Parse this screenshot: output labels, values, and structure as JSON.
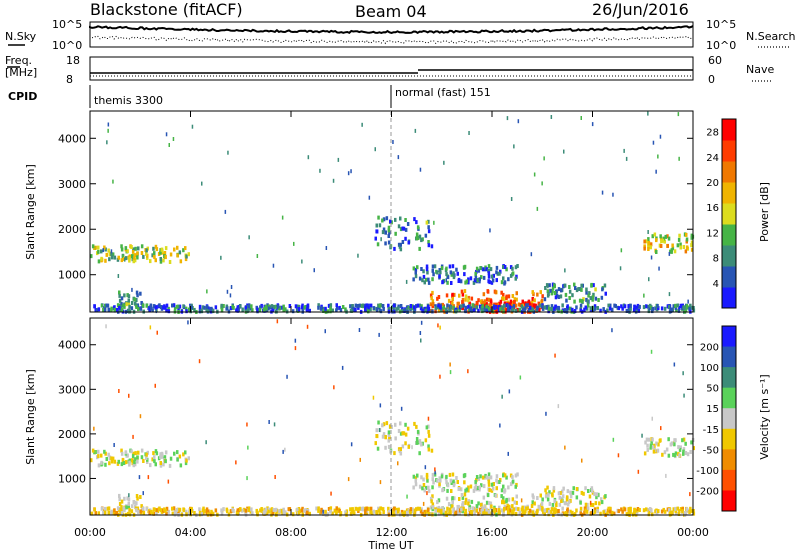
{
  "header": {
    "station": "Blackstone (fitACF)",
    "beam": "Beam 04",
    "date": "26/Jun/2016"
  },
  "top_panels": {
    "nsky_label": "N.Sky",
    "nsky_ticks": [
      "10^5",
      "10^0"
    ],
    "nsearch_label": "N.Search",
    "nsearch_ticks": [
      "10^5",
      "10^0"
    ],
    "freq_label_1": "Freq.",
    "freq_label_2": "[MHz]",
    "freq_ticks": [
      "18",
      "8"
    ],
    "nave_label": "Nave",
    "nave_ticks": [
      "60",
      "0"
    ],
    "cpid_label": "CPID",
    "cpid_segments": [
      {
        "name": "themis 3300",
        "start_hour": 0
      },
      {
        "name": "normal (fast) 151",
        "start_hour": 12
      }
    ]
  },
  "chart_data": [
    {
      "type": "heatmap",
      "panel": "power",
      "ylabel": "Slant Range [km]",
      "colorbar_label": "Power [dB]",
      "xlim": [
        0,
        24
      ],
      "ylim": [
        180,
        4600
      ],
      "yticks": [
        1000,
        2000,
        3000,
        4000
      ],
      "colorbar_ticks": [
        4,
        8,
        12,
        16,
        20,
        24,
        28
      ],
      "colorbar_range": [
        0,
        30
      ],
      "colorbar_colors": [
        "#1a1aff",
        "#2855b4",
        "#3c8c78",
        "#46b446",
        "#dcdc1e",
        "#f0b400",
        "#f07800",
        "#ff3c00",
        "#ff0000"
      ],
      "echo_regions": [
        {
          "x_range": [
            0.0,
            3.9
          ],
          "y_center": 1450,
          "y_width": 220,
          "value": 14
        },
        {
          "x_range": [
            1.1,
            2.1
          ],
          "y_center": 450,
          "y_width": 200,
          "value": 10
        },
        {
          "x_range": [
            11.3,
            13.6
          ],
          "y_center": 1900,
          "y_width": 450,
          "value": 8
        },
        {
          "x_range": [
            12.8,
            17.0
          ],
          "y_center": 1000,
          "y_width": 250,
          "value": 6
        },
        {
          "x_range": [
            13.5,
            18.0
          ],
          "y_center": 400,
          "y_width": 300,
          "value": 22
        },
        {
          "x_range": [
            15.5,
            18.0
          ],
          "y_center": 300,
          "y_width": 150,
          "value": 28
        },
        {
          "x_range": [
            18.0,
            20.5
          ],
          "y_center": 600,
          "y_width": 250,
          "value": 8
        },
        {
          "x_range": [
            22.0,
            24.0
          ],
          "y_center": 1700,
          "y_width": 250,
          "value": 16
        },
        {
          "x_range": [
            0.0,
            24.0
          ],
          "y_center": 250,
          "y_width": 100,
          "value": 6
        }
      ]
    },
    {
      "type": "heatmap",
      "panel": "velocity",
      "ylabel": "Slant Range [km]",
      "colorbar_label": "Velocity [m s⁻¹]",
      "xlabel": "Time UT",
      "xlim": [
        0,
        24
      ],
      "ylim": [
        180,
        4600
      ],
      "yticks": [
        1000,
        2000,
        3000,
        4000
      ],
      "xticks": [
        "00:00",
        "04:00",
        "08:00",
        "12:00",
        "16:00",
        "20:00",
        "00:00"
      ],
      "colorbar_ticks": [
        200,
        100,
        50,
        15,
        -15,
        -50,
        -100,
        -200
      ],
      "colorbar_colors": [
        "#1a1aff",
        "#2855b4",
        "#3c8c78",
        "#5ad25a",
        "#c8c8c8",
        "#f0c800",
        "#f08c00",
        "#ff5000",
        "#ff0000"
      ],
      "echo_regions": [
        {
          "x_range": [
            0.0,
            3.9
          ],
          "y_center": 1450,
          "y_width": 220,
          "value": 0
        },
        {
          "x_range": [
            1.1,
            2.1
          ],
          "y_center": 450,
          "y_width": 200,
          "value": 0
        },
        {
          "x_range": [
            11.3,
            13.6
          ],
          "y_center": 1900,
          "y_width": 450,
          "value": 0
        },
        {
          "x_range": [
            12.8,
            17.0
          ],
          "y_center": 900,
          "y_width": 250,
          "value": 0
        },
        {
          "x_range": [
            13.5,
            18.0
          ],
          "y_center": 400,
          "y_width": 300,
          "value": 0
        },
        {
          "x_range": [
            18.0,
            20.5
          ],
          "y_center": 600,
          "y_width": 250,
          "value": 0
        },
        {
          "x_range": [
            22.0,
            24.0
          ],
          "y_center": 1700,
          "y_width": 250,
          "value": 0
        },
        {
          "x_range": [
            0.0,
            24.0
          ],
          "y_center": 250,
          "y_width": 100,
          "value": -30
        }
      ]
    }
  ]
}
